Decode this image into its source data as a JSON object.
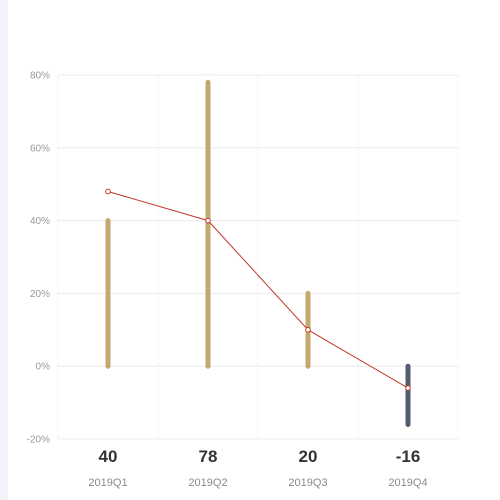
{
  "chart_data": {
    "type": "bar",
    "categories": [
      "2019Q1",
      "2019Q2",
      "2019Q3",
      "2019Q4"
    ],
    "values": [
      40,
      78,
      20,
      -16
    ],
    "value_labels": [
      "40",
      "78",
      "20",
      "-16"
    ],
    "line_values": [
      48,
      40,
      10,
      -6
    ],
    "ylim": [
      -20,
      80
    ],
    "yticks": [
      -20,
      0,
      20,
      40,
      60,
      80
    ],
    "ytick_labels": [
      "-20%",
      "0%",
      "20%",
      "40%",
      "60%",
      "80%"
    ],
    "grid": true,
    "colors": {
      "positive_bar": "#c4a96f",
      "negative_bar": "#555c6f",
      "line": "#c0392b",
      "marker_fill": "#ffffff"
    }
  }
}
